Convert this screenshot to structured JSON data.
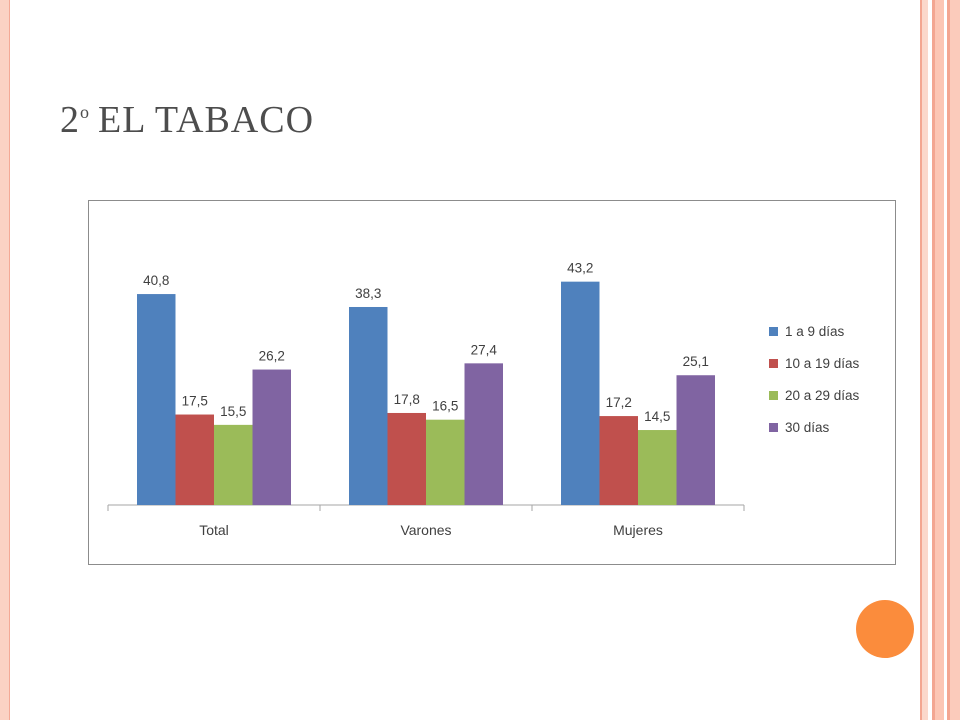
{
  "slide": {
    "title_number": "2",
    "title_superscript": "o",
    "title_text": "EL TABACO"
  },
  "colors": {
    "accent_circle": "#fb8c3c",
    "border_pink": "#fbd2c4"
  },
  "chart_data": {
    "type": "bar",
    "title": "",
    "xlabel": "",
    "ylabel": "",
    "ylim": [
      0,
      50
    ],
    "grid": false,
    "legend_position": "right",
    "categories": [
      "Total",
      "Varones",
      "Mujeres"
    ],
    "series": [
      {
        "name": "1 a 9 días",
        "color": "#4f81bd",
        "values": [
          40.8,
          38.3,
          43.2
        ],
        "labels": [
          "40,8",
          "38,3",
          "43,2"
        ]
      },
      {
        "name": "10 a 19 días",
        "color": "#c0504d",
        "values": [
          17.5,
          17.8,
          17.2
        ],
        "labels": [
          "17,5",
          "17,8",
          "17,2"
        ]
      },
      {
        "name": "20 a 29 días",
        "color": "#9bbb59",
        "values": [
          15.5,
          16.5,
          14.5
        ],
        "labels": [
          "15,5",
          "16,5",
          "14,5"
        ]
      },
      {
        "name": "30 días",
        "color": "#8064a2",
        "values": [
          26.2,
          27.4,
          25.1
        ],
        "labels": [
          "26,2",
          "27,4",
          "25,1"
        ]
      }
    ]
  }
}
